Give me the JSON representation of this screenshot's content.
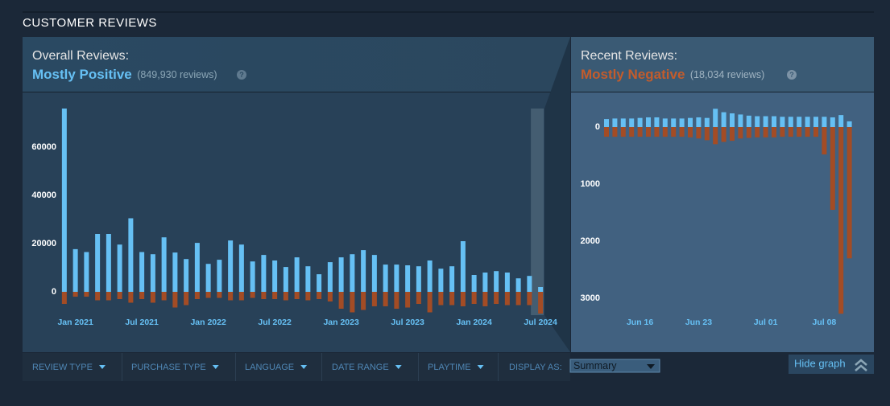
{
  "header": {
    "title": "CUSTOMER REVIEWS"
  },
  "overall": {
    "label": "Overall Reviews:",
    "rating": "Mostly Positive",
    "count": "(849,930 reviews)",
    "help": "?"
  },
  "recent": {
    "label": "Recent Reviews:",
    "rating": "Mostly Negative",
    "count": "(18,034 reviews)",
    "help": "?"
  },
  "filters": [
    "REVIEW TYPE",
    "PURCHASE TYPE",
    "LANGUAGE",
    "DATE RANGE",
    "PLAYTIME"
  ],
  "display_as": {
    "label": "DISPLAY AS:",
    "selected": "Summary"
  },
  "hide_graph": "Hide graph",
  "chart_data": [
    {
      "type": "bar",
      "categories": [
        null,
        "Jan 2021",
        null,
        null,
        null,
        null,
        null,
        "Jul 2021",
        null,
        null,
        null,
        null,
        null,
        "Jan 2022",
        null,
        null,
        null,
        null,
        null,
        "Jul 2022",
        null,
        null,
        null,
        null,
        null,
        "Jan 2023",
        null,
        null,
        null,
        null,
        null,
        "Jul 2023",
        null,
        null,
        null,
        null,
        null,
        "Jan 2024",
        null,
        null,
        null,
        null,
        null,
        "Jul 2024"
      ],
      "series": [
        {
          "color": "#66c0f4",
          "values": [
            76000,
            17700,
            16500,
            24000,
            24000,
            19600,
            30500,
            16500,
            15600,
            22600,
            16300,
            13600,
            20300,
            11600,
            13300,
            21300,
            19600,
            12600,
            15300,
            13000,
            10300,
            14300,
            10600,
            7300,
            12300,
            14300,
            15600,
            17300,
            15300,
            11300,
            11300,
            11000,
            10600,
            13000,
            9600,
            10600,
            21000,
            7000,
            8000,
            8600,
            8000,
            5600,
            6600,
            2000
          ]
        },
        {
          "color": "#a34c25",
          "values": [
            -5000,
            -2000,
            -2000,
            -3500,
            -3500,
            -3000,
            -4500,
            -3000,
            -4500,
            -3500,
            -6500,
            -5500,
            -3000,
            -2500,
            -2500,
            -3500,
            -3500,
            -2500,
            -3000,
            -3000,
            -3500,
            -3000,
            -3500,
            -3000,
            -4000,
            -7000,
            -8500,
            -7500,
            -6000,
            -6000,
            -7000,
            -6500,
            -5000,
            -8500,
            -5500,
            -5500,
            -6000,
            -5000,
            -6000,
            -5000,
            -5500,
            -5500,
            -5500,
            -9000
          ]
        }
      ],
      "ylim": [
        -10000,
        78000
      ],
      "yticks": [
        0,
        20000,
        40000,
        60000
      ]
    },
    {
      "type": "bar",
      "categories": [
        null,
        null,
        null,
        null,
        "Jun 16",
        null,
        null,
        null,
        null,
        null,
        null,
        "Jun 23",
        null,
        null,
        null,
        null,
        null,
        null,
        null,
        "Jul 01",
        null,
        null,
        null,
        null,
        null,
        null,
        "Jul 08",
        null,
        null,
        null
      ],
      "series": [
        {
          "color": "#66c0f4",
          "values": [
            140,
            150,
            150,
            150,
            160,
            170,
            170,
            150,
            150,
            150,
            160,
            170,
            160,
            320,
            260,
            240,
            220,
            200,
            190,
            190,
            190,
            180,
            180,
            180,
            180,
            180,
            180,
            170,
            210,
            100
          ]
        },
        {
          "color": "#a34c25",
          "values": [
            -170,
            -170,
            -170,
            -170,
            -170,
            -170,
            -170,
            -170,
            -170,
            -170,
            -180,
            -200,
            -230,
            -300,
            -260,
            -240,
            -200,
            -190,
            -180,
            -180,
            -180,
            -170,
            -170,
            -170,
            -170,
            -170,
            -480,
            -1450,
            -3270,
            -2300
          ]
        }
      ],
      "ylim": [
        -3350,
        540
      ],
      "yticks": [
        0,
        {
          "value": -1000,
          "label": "1000"
        },
        {
          "value": -2000,
          "label": "2000"
        },
        {
          "value": -3000,
          "label": "3000"
        }
      ]
    }
  ]
}
